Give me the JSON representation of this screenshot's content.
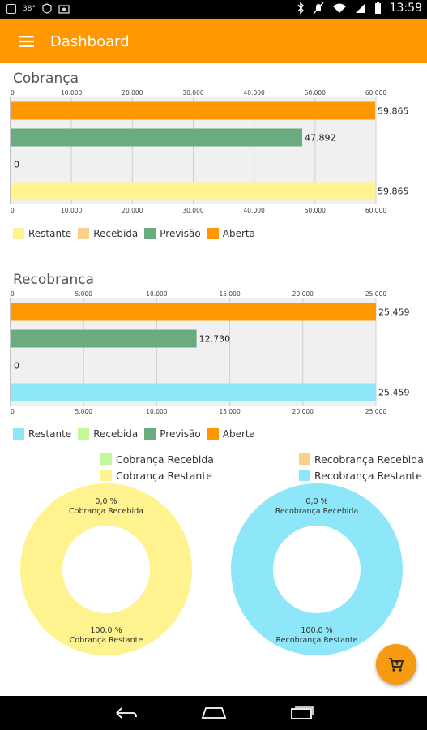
{
  "status_bar": {
    "temperature": "38°",
    "time": "13:59",
    "icons": [
      "screenshot-icon",
      "shield-icon",
      "photo-icon",
      "bluetooth-icon",
      "no-notification-icon",
      "wifi-icon",
      "signal-icon",
      "battery-icon"
    ]
  },
  "app_bar": {
    "title": "Dashboard",
    "color": "#fe9700"
  },
  "cobranca": {
    "title": "Cobrança",
    "value_labels": [
      "59.865",
      "47.892",
      "0",
      "59.865"
    ],
    "legend": [
      "Restante",
      "Recebida",
      "Previsão",
      "Aberta"
    ]
  },
  "recobranca": {
    "title": "Recobrança",
    "value_labels": [
      "25.459",
      "12.730",
      "0",
      "25.459"
    ],
    "legend": [
      "Restante",
      "Recebida",
      "Previsão",
      "Aberta"
    ]
  },
  "chart_data": [
    {
      "type": "bar",
      "orientation": "horizontal",
      "title": "Cobrança",
      "categories": [
        "Aberta",
        "Previsão",
        "Recebida",
        "Restante"
      ],
      "values": [
        59865,
        47892,
        0,
        59865
      ],
      "colors": [
        "#fe9700",
        "#6aab80",
        "#fdcf8c",
        "#fef38e"
      ],
      "xlim": [
        0,
        60000
      ],
      "ticks": [
        "0",
        "10.000",
        "20.000",
        "30.000",
        "40.000",
        "50.000",
        "60.000"
      ],
      "legend": [
        "Restante",
        "Recebida",
        "Previsão",
        "Aberta"
      ],
      "legend_position": "bottom-left",
      "grid": true
    },
    {
      "type": "bar",
      "orientation": "horizontal",
      "title": "Recobrança",
      "categories": [
        "Aberta",
        "Previsão",
        "Recebida",
        "Restante"
      ],
      "values": [
        25459,
        12730,
        0,
        25459
      ],
      "colors": [
        "#fe9700",
        "#6aab80",
        "#c5f79b",
        "#8de7f8"
      ],
      "xlim": [
        0,
        25000
      ],
      "ticks": [
        "0",
        "5.000",
        "10.000",
        "15.000",
        "20.000",
        "25.000"
      ],
      "legend": [
        "Restante",
        "Recebida",
        "Previsão",
        "Aberta"
      ],
      "legend_position": "bottom-left",
      "grid": true
    },
    {
      "type": "pie",
      "variant": "donut",
      "labels": [
        "Cobrança Recebida",
        "Cobrança Restante"
      ],
      "values": [
        0.0,
        100.0
      ],
      "percent_labels": [
        "0,0 %",
        "100,0 %"
      ],
      "colors": [
        "#c5f79b",
        "#fef38e"
      ]
    },
    {
      "type": "pie",
      "variant": "donut",
      "labels": [
        "Recobrança Recebida",
        "Recobrança Restante"
      ],
      "values": [
        0.0,
        100.0
      ],
      "percent_labels": [
        "0,0 %",
        "100,0 %"
      ],
      "colors": [
        "#fdcf8c",
        "#8de7f8"
      ]
    }
  ],
  "donut1": {
    "legend": [
      "Cobrança Recebida",
      "Cobrança Restante"
    ],
    "top_percent": "0,0 %",
    "top_label": "Cobrança Recebida",
    "bottom_percent": "100,0 %",
    "bottom_label": "Cobrança Restante"
  },
  "donut2": {
    "legend": [
      "Recobrança Recebida",
      "Recobrança Restante"
    ],
    "top_percent": "0,0 %",
    "top_label": "Recobrança Recebida",
    "bottom_percent": "100,0 %",
    "bottom_label": "Recobrança Restante"
  },
  "fab": {
    "icon": "cart-icon"
  },
  "nav_bar": {
    "icons": [
      "back-icon",
      "home-icon",
      "recents-icon"
    ]
  }
}
